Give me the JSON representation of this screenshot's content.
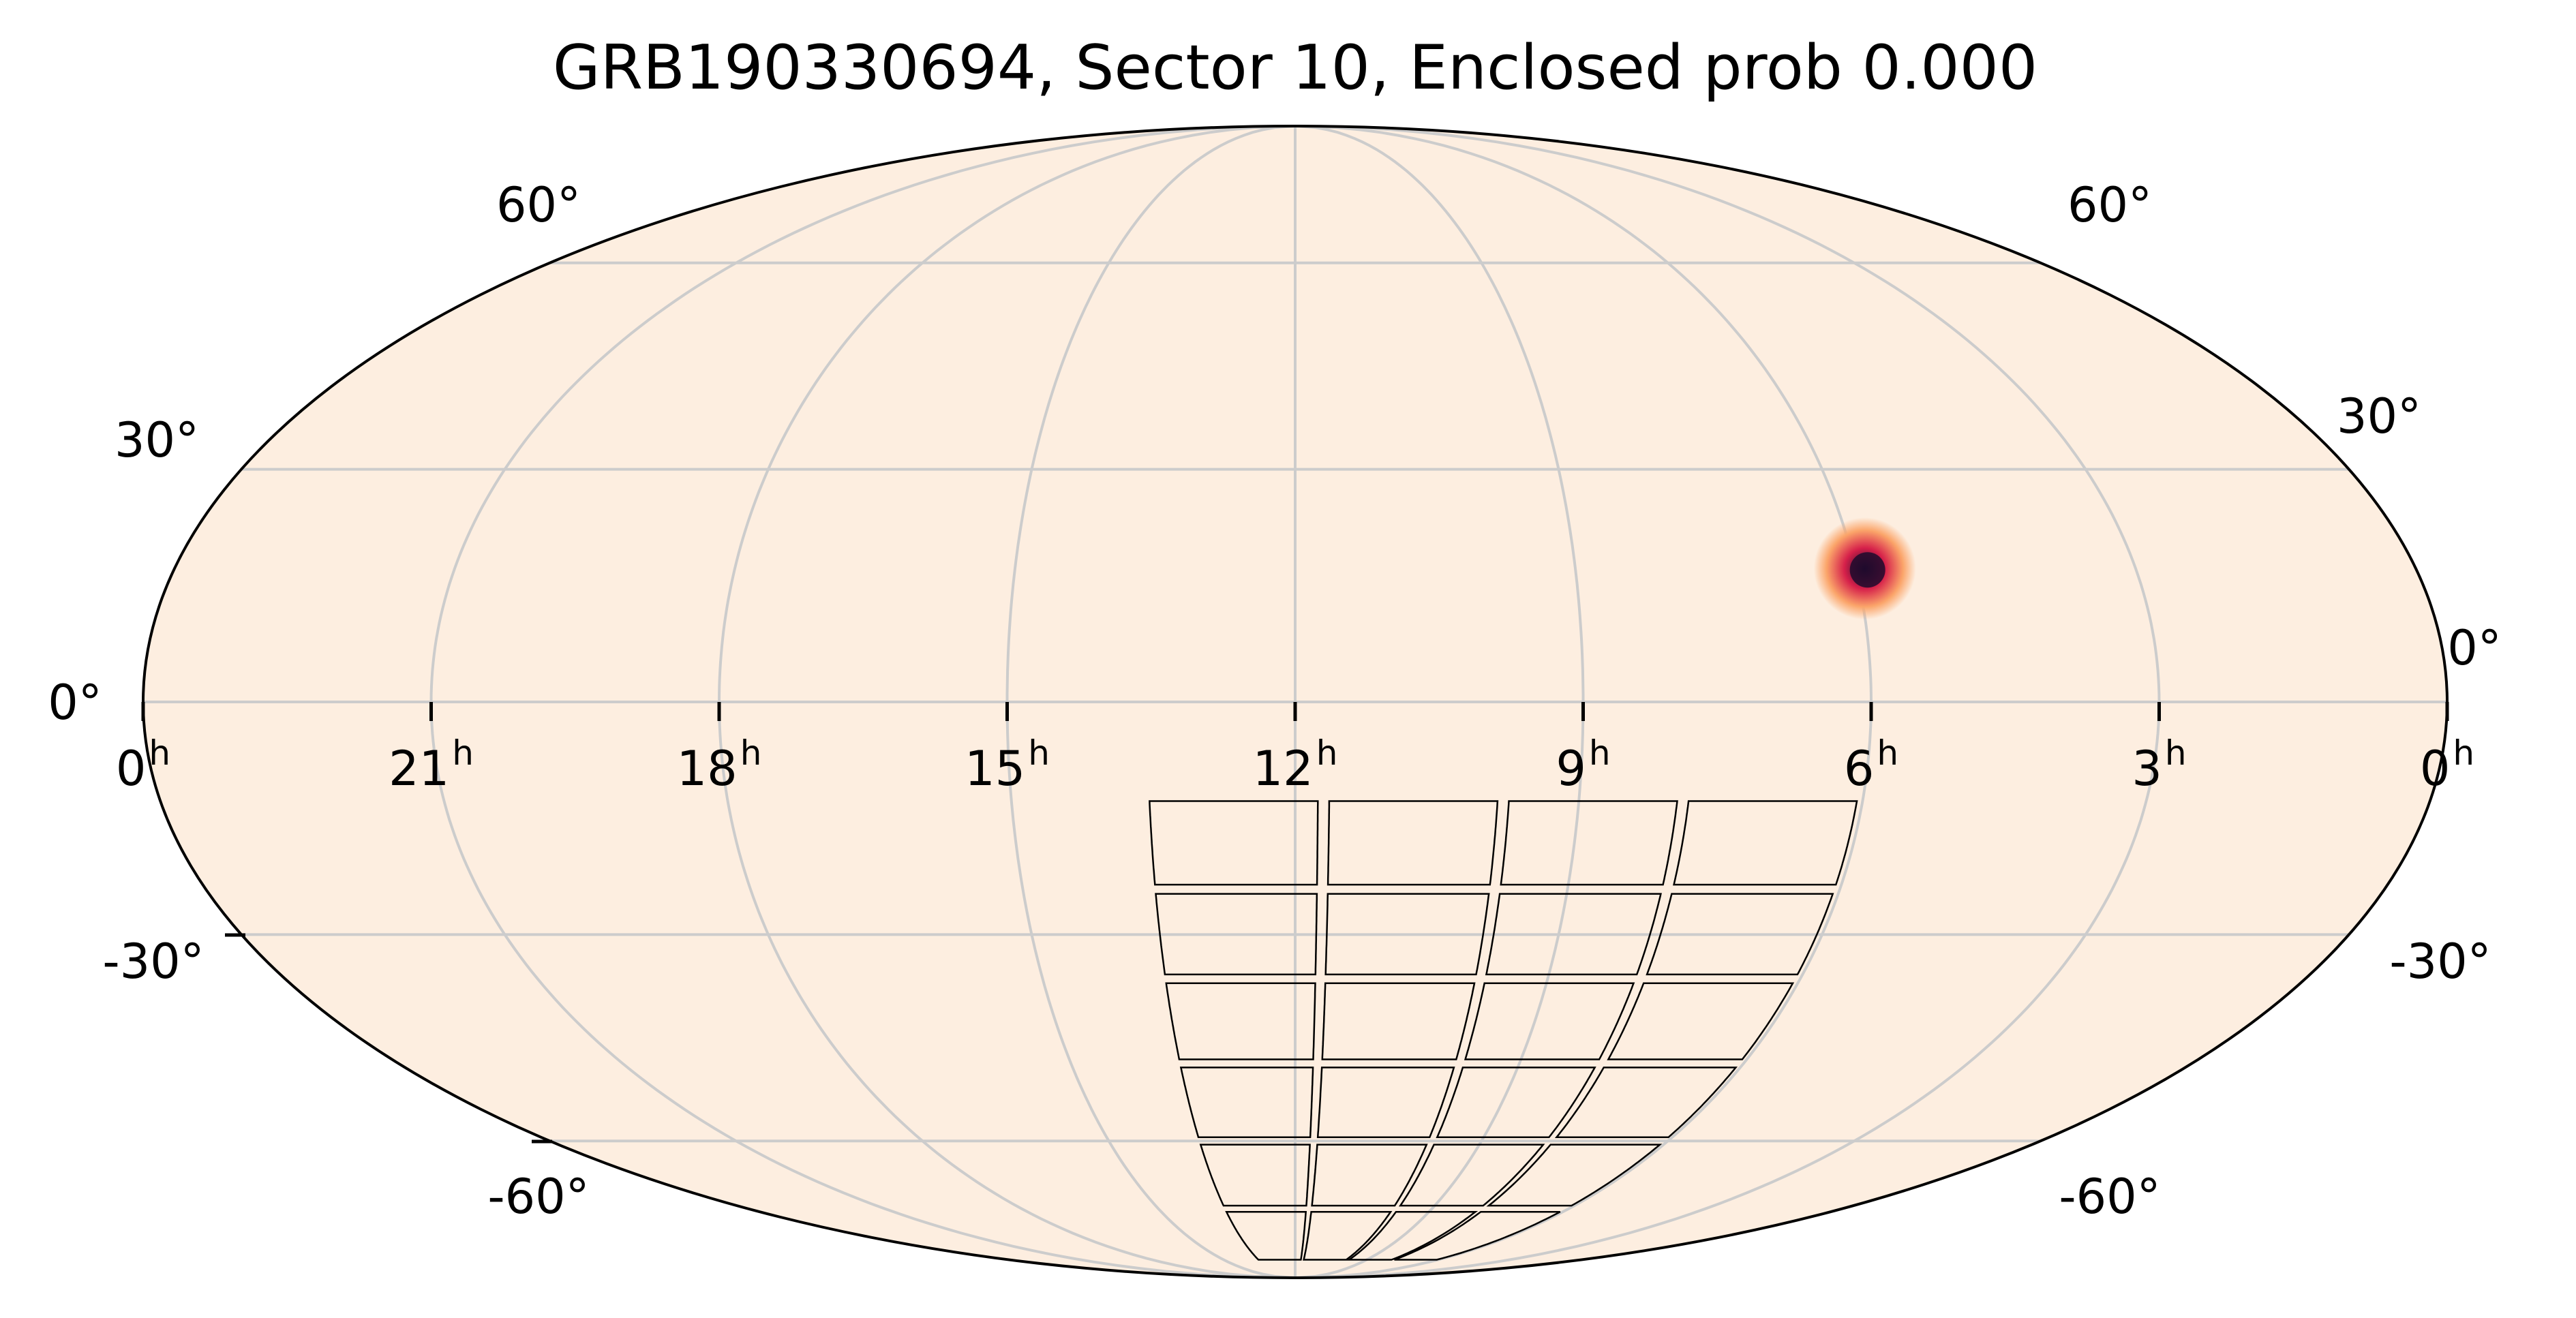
{
  "title": "GRB190330694, Sector 10, Enclosed prob 0.000",
  "projection": "mollweide",
  "colors": {
    "background": "#fdeee0",
    "grid": "#cccccc",
    "outline": "#000000",
    "footprint": "#000000",
    "hotspot_core": "#1e0a2d",
    "hotspot_mid": "#d6204a",
    "hotspot_edge": "#fba56a"
  },
  "ra_labels": [
    {
      "ra_hours": 24,
      "text": "0",
      "sup": "h"
    },
    {
      "ra_hours": 21,
      "text": "21",
      "sup": "h"
    },
    {
      "ra_hours": 18,
      "text": "18",
      "sup": "h"
    },
    {
      "ra_hours": 15,
      "text": "15",
      "sup": "h"
    },
    {
      "ra_hours": 12,
      "text": "12",
      "sup": "h"
    },
    {
      "ra_hours": 9,
      "text": "9",
      "sup": "h"
    },
    {
      "ra_hours": 6,
      "text": "6",
      "sup": "h"
    },
    {
      "ra_hours": 3,
      "text": "3",
      "sup": "h"
    },
    {
      "ra_hours": 0,
      "text": "0",
      "sup": "h"
    }
  ],
  "dec_labels": [
    {
      "dec": 60,
      "text": "60°"
    },
    {
      "dec": 30,
      "text": "30°"
    },
    {
      "dec": 0,
      "text": "0°"
    },
    {
      "dec": -30,
      "text": "-30°"
    },
    {
      "dec": -60,
      "text": "-60°"
    }
  ],
  "hotspot": {
    "ra_hours": 5.9,
    "dec": 17
  },
  "footprint": {
    "ra_min_hours": 6.0,
    "ra_max_hours": 13.6,
    "dec_min": -84,
    "dec_max": -12,
    "grid_ra": 4,
    "grid_dec": 6
  }
}
